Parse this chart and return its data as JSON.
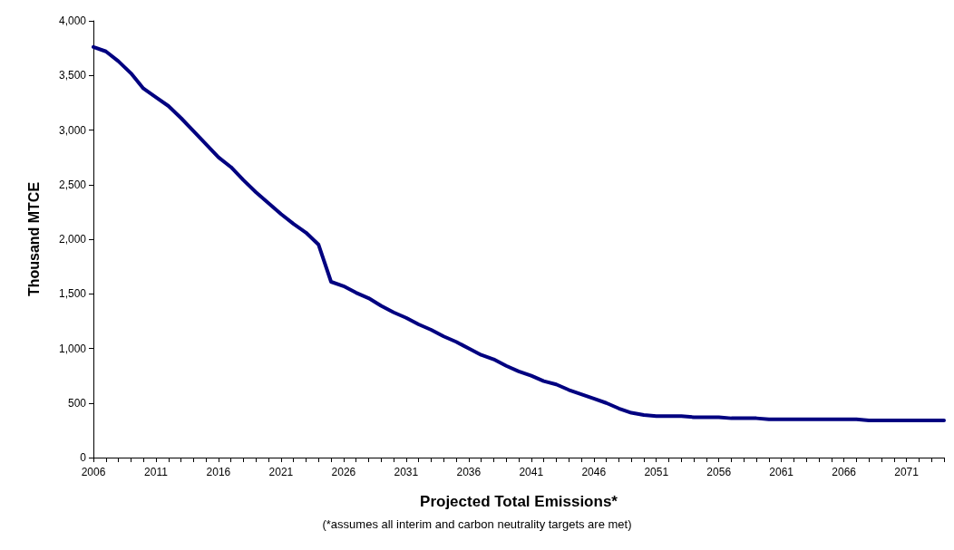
{
  "chart_data": {
    "type": "line",
    "xlabel": "Projected Total Emissions*",
    "ylabel": "Thousand MTCE",
    "annotations": [
      "(*assumes all interim and carbon neutrality targets are met)"
    ],
    "categories": [
      "2006",
      null,
      null,
      null,
      null,
      "2011",
      null,
      null,
      null,
      null,
      "2016",
      null,
      null,
      null,
      null,
      "2021",
      null,
      null,
      null,
      null,
      "2026",
      null,
      null,
      null,
      null,
      "2031",
      null,
      null,
      null,
      null,
      "2036",
      null,
      null,
      null,
      null,
      "2041",
      null,
      null,
      null,
      null,
      "2046",
      null,
      null,
      null,
      null,
      "2051",
      null,
      null,
      null,
      null,
      "2056",
      null,
      null,
      null,
      null,
      "2061",
      null,
      null,
      null,
      null,
      "2066",
      null,
      null,
      null,
      null,
      "2071",
      null,
      null,
      null
    ],
    "series": [
      {
        "color": "#000080",
        "values": [
          3760,
          3720,
          3630,
          3520,
          3380,
          3300,
          3220,
          3110,
          2990,
          2870,
          2750,
          2660,
          2540,
          2430,
          2330,
          2230,
          2140,
          2060,
          1950,
          1610,
          1570,
          1510,
          1460,
          1390,
          1330,
          1280,
          1220,
          1170,
          1110,
          1060,
          1000,
          940,
          900,
          840,
          790,
          750,
          700,
          670,
          620,
          580,
          540,
          500,
          450,
          410,
          390,
          380,
          380,
          380,
          370,
          370,
          370,
          360,
          360,
          360,
          350,
          350,
          350,
          350,
          350,
          350,
          350,
          350,
          340,
          340,
          340,
          340,
          340,
          340,
          340
        ]
      }
    ],
    "ylim": [
      0,
      4000
    ],
    "yticks": [
      0,
      500,
      {
        "value": 1000,
        "label": "1,000"
      },
      {
        "value": 1500,
        "label": "1,500"
      },
      {
        "value": 2000,
        "label": "2,000"
      },
      {
        "value": 2500,
        "label": "2,500"
      },
      {
        "value": 3000,
        "label": "3,000"
      },
      {
        "value": 3500,
        "label": "3,500"
      },
      {
        "value": 4000,
        "label": "4,000"
      }
    ],
    "grid": false,
    "marker": "none",
    "line_style": "solid"
  }
}
